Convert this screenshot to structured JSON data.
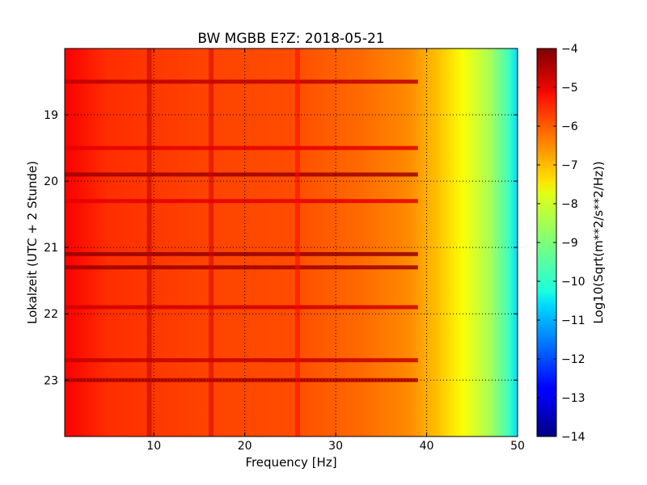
{
  "chart_data": {
    "type": "heatmap",
    "title": "BW MGBB E?Z: 2018-05-21",
    "xlabel": "Frequency [Hz]",
    "ylabel": "Lokalzeit (UTC + 2 Stunde)",
    "xlim": [
      0.2,
      50
    ],
    "ylim": [
      18.0,
      23.85
    ],
    "y_inverted": true,
    "x_ticks": [
      10,
      20,
      30,
      40,
      50
    ],
    "y_ticks": [
      19,
      20,
      21,
      22,
      23
    ],
    "grid": true,
    "colormap": "jet",
    "colorbar": {
      "label": "Log10(Sqrt(m**2/s**2/Hz))",
      "range": [
        -14,
        -4
      ],
      "ticks": [
        -4,
        -5,
        -6,
        -7,
        -8,
        -9,
        -10,
        -11,
        -12,
        -13,
        -14
      ]
    },
    "baseline_profile": [
      {
        "hz": 0.2,
        "value": -5.2
      },
      {
        "hz": 5,
        "value": -5.7
      },
      {
        "hz": 15,
        "value": -5.9
      },
      {
        "hz": 25,
        "value": -6.0
      },
      {
        "hz": 33,
        "value": -6.3
      },
      {
        "hz": 38,
        "value": -6.6
      },
      {
        "hz": 41,
        "value": -7.1
      },
      {
        "hz": 44,
        "value": -7.8
      },
      {
        "hz": 47,
        "value": -8.6
      },
      {
        "hz": 49,
        "value": -9.6
      },
      {
        "hz": 50,
        "value": -10.6
      }
    ],
    "high_energy_bands_time": [
      {
        "time": 18.5,
        "value": -4.6
      },
      {
        "time": 19.5,
        "value": -5.0
      },
      {
        "time": 19.9,
        "value": -4.3
      },
      {
        "time": 20.3,
        "value": -5.0
      },
      {
        "time": 21.1,
        "value": -4.2
      },
      {
        "time": 21.3,
        "value": -4.3
      },
      {
        "time": 21.9,
        "value": -4.8
      },
      {
        "time": 22.7,
        "value": -4.7
      },
      {
        "time": 23.0,
        "value": -4.5
      }
    ],
    "high_energy_lines_freq": [
      {
        "hz": 9.5,
        "value": -4.6
      },
      {
        "hz": 16.3,
        "value": -4.9
      },
      {
        "hz": 25.8,
        "value": -5.3
      }
    ]
  }
}
